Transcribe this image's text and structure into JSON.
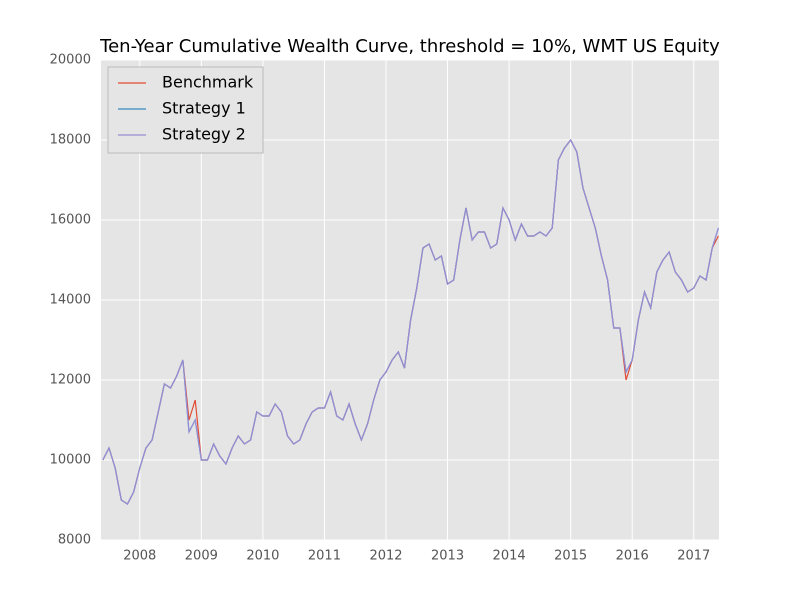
{
  "chart_data": {
    "type": "line",
    "title": "Ten-Year Cumulative Wealth Curve, threshold = 10%, WMT US Equity",
    "x": [
      2007.4,
      2007.5,
      2007.6,
      2007.7,
      2007.8,
      2007.9,
      2008.0,
      2008.1,
      2008.2,
      2008.3,
      2008.4,
      2008.5,
      2008.6,
      2008.7,
      2008.8,
      2008.9,
      2009.0,
      2009.1,
      2009.2,
      2009.3,
      2009.4,
      2009.5,
      2009.6,
      2009.7,
      2009.8,
      2009.9,
      2010.0,
      2010.1,
      2010.2,
      2010.3,
      2010.4,
      2010.5,
      2010.6,
      2010.7,
      2010.8,
      2010.9,
      2011.0,
      2011.1,
      2011.2,
      2011.3,
      2011.4,
      2011.5,
      2011.6,
      2011.7,
      2011.8,
      2011.9,
      2012.0,
      2012.1,
      2012.2,
      2012.3,
      2012.4,
      2012.5,
      2012.6,
      2012.7,
      2012.8,
      2012.9,
      2013.0,
      2013.1,
      2013.2,
      2013.3,
      2013.4,
      2013.5,
      2013.6,
      2013.7,
      2013.8,
      2013.9,
      2014.0,
      2014.1,
      2014.2,
      2014.3,
      2014.4,
      2014.5,
      2014.6,
      2014.7,
      2014.8,
      2014.9,
      2015.0,
      2015.1,
      2015.2,
      2015.3,
      2015.4,
      2015.5,
      2015.6,
      2015.7,
      2015.8,
      2015.9,
      2016.0,
      2016.1,
      2016.2,
      2016.3,
      2016.4,
      2016.5,
      2016.6,
      2016.7,
      2016.8,
      2016.9,
      2017.0,
      2017.1,
      2017.2,
      2017.3,
      2017.4
    ],
    "series": [
      {
        "name": "Benchmark",
        "color": "#e24a33",
        "values": [
          10000,
          10300,
          9800,
          9000,
          8900,
          9200,
          9800,
          10300,
          10500,
          11200,
          11900,
          11800,
          12100,
          12500,
          11000,
          11500,
          10000,
          10000,
          10400,
          10100,
          9900,
          10300,
          10600,
          10400,
          10500,
          11200,
          11100,
          11100,
          11400,
          11200,
          10600,
          10400,
          10500,
          10900,
          11200,
          11300,
          11300,
          11700,
          11100,
          11000,
          11400,
          10900,
          10500,
          10900,
          11500,
          12000,
          12200,
          12500,
          12700,
          12300,
          13500,
          14300,
          15300,
          15400,
          15000,
          15100,
          14400,
          14500,
          15500,
          16300,
          15500,
          15700,
          15700,
          15300,
          15400,
          16300,
          16000,
          15500,
          15900,
          15600,
          15600,
          15700,
          15600,
          15800,
          17500,
          17800,
          18000,
          17700,
          16800,
          16300,
          15800,
          15100,
          14500,
          13300,
          13300,
          12000,
          12500,
          13500,
          14200,
          13800,
          14700,
          15000,
          15200,
          14700,
          14500,
          14200,
          14300,
          14600,
          14500,
          15300,
          15600
        ]
      },
      {
        "name": "Strategy 1",
        "color": "#348abd",
        "values": [
          10000,
          10300,
          9800,
          9000,
          8900,
          9200,
          9800,
          10300,
          10500,
          11200,
          11900,
          11800,
          12100,
          12500,
          10700,
          11000,
          10000,
          10000,
          10400,
          10100,
          9900,
          10300,
          10600,
          10400,
          10500,
          11200,
          11100,
          11100,
          11400,
          11200,
          10600,
          10400,
          10500,
          10900,
          11200,
          11300,
          11300,
          11700,
          11100,
          11000,
          11400,
          10900,
          10500,
          10900,
          11500,
          12000,
          12200,
          12500,
          12700,
          12300,
          13500,
          14300,
          15300,
          15400,
          15000,
          15100,
          14400,
          14500,
          15500,
          16300,
          15500,
          15700,
          15700,
          15300,
          15400,
          16300,
          16000,
          15500,
          15900,
          15600,
          15600,
          15700,
          15600,
          15800,
          17500,
          17800,
          18000,
          17700,
          16800,
          16300,
          15800,
          15100,
          14500,
          13300,
          13300,
          12200,
          12500,
          13500,
          14200,
          13800,
          14700,
          15000,
          15200,
          14700,
          14500,
          14200,
          14300,
          14600,
          14500,
          15300,
          15800
        ]
      },
      {
        "name": "Strategy 2",
        "color": "#988ed5",
        "values": [
          10000,
          10300,
          9800,
          9000,
          8900,
          9200,
          9800,
          10300,
          10500,
          11200,
          11900,
          11800,
          12100,
          12500,
          10700,
          11000,
          10000,
          10000,
          10400,
          10100,
          9900,
          10300,
          10600,
          10400,
          10500,
          11200,
          11100,
          11100,
          11400,
          11200,
          10600,
          10400,
          10500,
          10900,
          11200,
          11300,
          11300,
          11700,
          11100,
          11000,
          11400,
          10900,
          10500,
          10900,
          11500,
          12000,
          12200,
          12500,
          12700,
          12300,
          13500,
          14300,
          15300,
          15400,
          15000,
          15100,
          14400,
          14500,
          15500,
          16300,
          15500,
          15700,
          15700,
          15300,
          15400,
          16300,
          16000,
          15500,
          15900,
          15600,
          15600,
          15700,
          15600,
          15800,
          17500,
          17800,
          18000,
          17700,
          16800,
          16300,
          15800,
          15100,
          14500,
          13300,
          13300,
          12200,
          12500,
          13500,
          14200,
          13800,
          14700,
          15000,
          15200,
          14700,
          14500,
          14200,
          14300,
          14600,
          14500,
          15300,
          15800
        ]
      }
    ],
    "xlim": [
      2007.37,
      2017.41
    ],
    "xticks": [
      2008,
      2009,
      2010,
      2011,
      2012,
      2013,
      2014,
      2015,
      2016,
      2017
    ],
    "ylim": [
      8000,
      20000
    ],
    "yticks": [
      8000,
      10000,
      12000,
      14000,
      16000,
      18000,
      20000
    ],
    "grid": true,
    "legend": "upper left"
  }
}
